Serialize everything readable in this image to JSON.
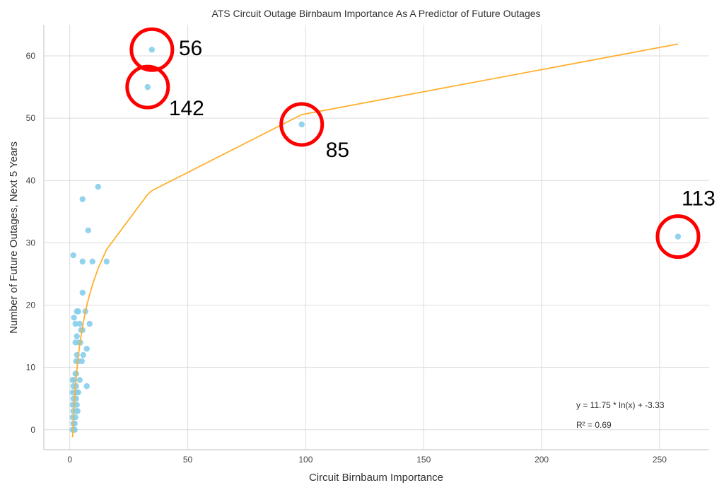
{
  "chart_data": {
    "type": "scatter",
    "title": "ATS Circuit Outage Birnbaum Importance As A Predictor of Future Outages",
    "xlabel": "Circuit Birnbaum Importance",
    "ylabel": "Number of Future Outages, Next 5 Years",
    "xlim": [
      -11,
      271
    ],
    "ylim": [
      -3.2,
      65
    ],
    "xticks": [
      0,
      50,
      100,
      150,
      200,
      250
    ],
    "yticks": [
      0,
      10,
      20,
      30,
      40,
      50,
      60
    ],
    "grid": true,
    "point_color": "#87ceeb",
    "fit_color": "#ffb02e",
    "points": [
      [
        34.8,
        61
      ],
      [
        33,
        55
      ],
      [
        98.3,
        49
      ],
      [
        257.8,
        31
      ],
      [
        12,
        39
      ],
      [
        5.4,
        37
      ],
      [
        7.8,
        32
      ],
      [
        1.5,
        28
      ],
      [
        5.4,
        27
      ],
      [
        9.6,
        27
      ],
      [
        15.6,
        27
      ],
      [
        5.4,
        22
      ],
      [
        1.8,
        18
      ],
      [
        2.4,
        17
      ],
      [
        3.6,
        19
      ],
      [
        3,
        19
      ],
      [
        6.6,
        19
      ],
      [
        8.4,
        17
      ],
      [
        4.2,
        17
      ],
      [
        4.8,
        16
      ],
      [
        5.4,
        16
      ],
      [
        3,
        15
      ],
      [
        3.9,
        14
      ],
      [
        2.4,
        14
      ],
      [
        4.5,
        14
      ],
      [
        7.2,
        13
      ],
      [
        3,
        12
      ],
      [
        5.7,
        12
      ],
      [
        2.7,
        11
      ],
      [
        3.6,
        11
      ],
      [
        5.1,
        11
      ],
      [
        2.4,
        9
      ],
      [
        2.7,
        9
      ],
      [
        4.2,
        8
      ],
      [
        1.2,
        8
      ],
      [
        1.8,
        8
      ],
      [
        7.2,
        7
      ],
      [
        1.5,
        7
      ],
      [
        2.7,
        7
      ],
      [
        1.2,
        6
      ],
      [
        2.4,
        6
      ],
      [
        3.6,
        6
      ],
      [
        3,
        6
      ],
      [
        1.5,
        5
      ],
      [
        2.7,
        5
      ],
      [
        1.2,
        4
      ],
      [
        2.1,
        4
      ],
      [
        3,
        4
      ],
      [
        2.7,
        3
      ],
      [
        1.5,
        3
      ],
      [
        3.3,
        3
      ],
      [
        1.2,
        2
      ],
      [
        2.4,
        2
      ],
      [
        1.5,
        1
      ],
      [
        2.1,
        1
      ],
      [
        1.2,
        0
      ],
      [
        2.1,
        0
      ],
      [
        1.8,
        0
      ]
    ],
    "fit": {
      "a": 11.75,
      "b": -3.33,
      "equation": "y = 11.75 * ln(x) + -3.33",
      "r2": "R² = 0.69"
    },
    "annotations": [
      {
        "label": "56",
        "x": 34.8,
        "y": 61
      },
      {
        "label": "142",
        "x": 33,
        "y": 55
      },
      {
        "label": "85",
        "x": 98.3,
        "y": 49
      },
      {
        "label": "113",
        "x": 257.8,
        "y": 31
      }
    ],
    "annotation_color": "#ff0000"
  }
}
